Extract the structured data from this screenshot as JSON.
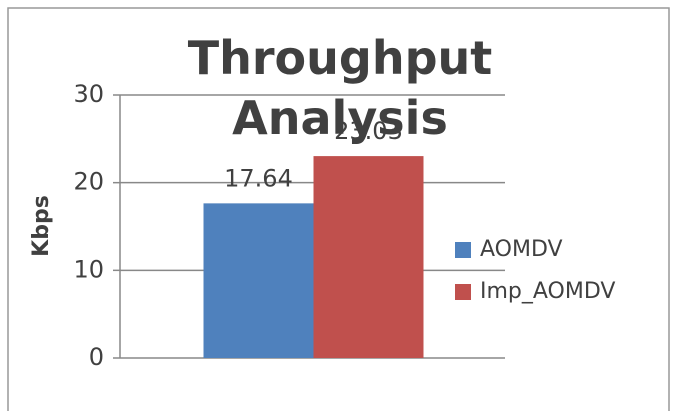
{
  "chart_data": {
    "type": "bar",
    "title": "Throughput Analysis",
    "y_label": "Kbps",
    "categories": [
      null
    ],
    "series": [
      {
        "name": "AOMDV",
        "color": "#4f81bd",
        "values": [
          17.64
        ]
      },
      {
        "name": "Imp_AOMDV",
        "color": "#c0504d",
        "values": [
          23.03
        ]
      }
    ],
    "ylim": [
      0,
      30
    ],
    "yticks": [
      0,
      10,
      20,
      30
    ],
    "grid": true,
    "legend": "right"
  }
}
